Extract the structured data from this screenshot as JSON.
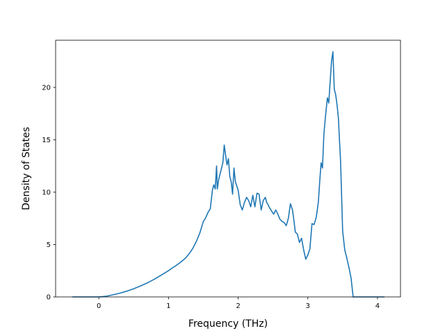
{
  "chart_data": {
    "type": "line",
    "title": "",
    "xlabel": "Frequency (THz)",
    "ylabel": "Density of States",
    "xlim": [
      -0.62,
      4.33
    ],
    "ylim": [
      0,
      24.5
    ],
    "xticks": [
      0,
      1,
      2,
      3,
      4
    ],
    "xtick_labels": [
      "0",
      "1",
      "2",
      "3",
      "4"
    ],
    "yticks": [
      0,
      5,
      10,
      15,
      20
    ],
    "ytick_labels": [
      "0",
      "5",
      "10",
      "15",
      "20"
    ],
    "grid": false,
    "legend": false,
    "line_color": "#1f77b4",
    "series": [
      {
        "x": [
          -0.38,
          -0.2,
          0.0,
          0.1,
          0.2,
          0.3,
          0.4,
          0.5,
          0.6,
          0.7,
          0.8,
          0.9,
          1.0,
          1.05,
          1.1,
          1.15,
          1.2,
          1.25,
          1.3,
          1.35,
          1.4,
          1.45,
          1.5,
          1.53,
          1.57,
          1.6,
          1.63,
          1.65,
          1.67,
          1.69,
          1.7,
          1.72,
          1.75,
          1.78,
          1.8,
          1.82,
          1.84,
          1.86,
          1.88,
          1.9,
          1.92,
          1.94,
          1.96,
          1.98,
          2.0,
          2.03,
          2.06,
          2.09,
          2.12,
          2.15,
          2.18,
          2.21,
          2.24,
          2.27,
          2.3,
          2.33,
          2.36,
          2.39,
          2.41,
          2.43,
          2.45,
          2.48,
          2.51,
          2.54,
          2.57,
          2.6,
          2.63,
          2.66,
          2.69,
          2.72,
          2.75,
          2.78,
          2.8,
          2.82,
          2.85,
          2.88,
          2.91,
          2.94,
          2.97,
          3.0,
          3.03,
          3.06,
          3.09,
          3.12,
          3.15,
          3.17,
          3.19,
          3.21,
          3.23,
          3.25,
          3.28,
          3.3,
          3.32,
          3.34,
          3.36,
          3.38,
          3.4,
          3.42,
          3.44,
          3.45,
          3.47,
          3.5,
          3.53,
          3.56,
          3.59,
          3.62,
          3.65,
          3.68,
          3.71,
          3.73,
          3.75,
          3.8,
          4.0,
          4.1
        ],
        "y": [
          0,
          0,
          0,
          0.06,
          0.2,
          0.36,
          0.55,
          0.78,
          1.05,
          1.35,
          1.7,
          2.1,
          2.5,
          2.75,
          2.95,
          3.2,
          3.45,
          3.75,
          4.15,
          4.65,
          5.3,
          6.1,
          7.2,
          7.5,
          8.1,
          8.4,
          10.2,
          10.7,
          10.3,
          12.5,
          10.3,
          11.2,
          12.0,
          12.8,
          14.5,
          13.5,
          12.6,
          13.2,
          11.5,
          11.0,
          9.8,
          12.3,
          11.0,
          10.6,
          10.2,
          8.8,
          8.3,
          9.0,
          9.5,
          9.2,
          8.6,
          9.7,
          8.6,
          9.9,
          9.8,
          8.3,
          9.2,
          9.5,
          9.0,
          8.8,
          8.5,
          8.2,
          7.9,
          8.3,
          7.9,
          7.4,
          7.2,
          7.1,
          6.8,
          7.5,
          8.9,
          8.3,
          7.3,
          6.2,
          6.0,
          5.2,
          5.6,
          4.5,
          3.6,
          4.0,
          4.6,
          7.0,
          6.9,
          7.6,
          9.0,
          11.0,
          12.8,
          12.3,
          15.5,
          17.0,
          19.0,
          18.5,
          20.5,
          22.5,
          23.4,
          19.8,
          19.3,
          18.3,
          17.0,
          15.5,
          13.0,
          6.3,
          4.5,
          3.7,
          2.8,
          1.8,
          0,
          0,
          0,
          0,
          0,
          0,
          0,
          0
        ]
      }
    ]
  }
}
